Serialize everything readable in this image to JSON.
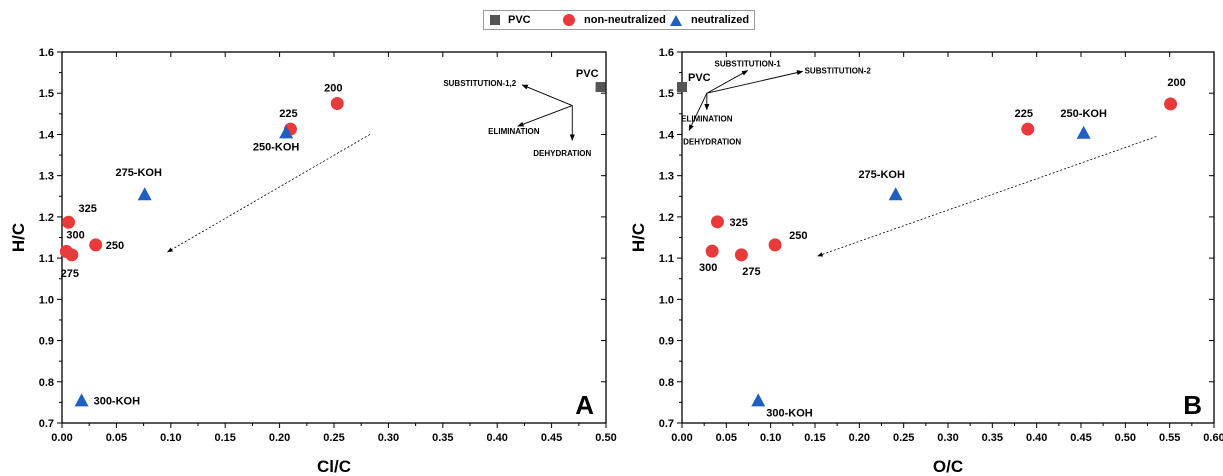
{
  "legend": {
    "items": [
      {
        "label": "PVC",
        "marker": "square",
        "color": "#555555"
      },
      {
        "label": "non-neutralized",
        "marker": "circle",
        "color": "#e83a3a"
      },
      {
        "label": "neutralized",
        "marker": "triangle",
        "color": "#1f5fbf"
      }
    ]
  },
  "chart_data": [
    {
      "type": "scatter",
      "panel_label": "A",
      "xlabel": "Cl/C",
      "ylabel": "H/C",
      "xlim": [
        0,
        0.5
      ],
      "ylim": [
        0.7,
        1.6
      ],
      "xticks": [
        "0.00",
        "0.05",
        "0.10",
        "0.15",
        "0.20",
        "0.25",
        "0.30",
        "0.35",
        "0.40",
        "0.45",
        "0.50"
      ],
      "yticks": [
        "0.7",
        "0.8",
        "0.9",
        "1.0",
        "1.1",
        "1.2",
        "1.3",
        "1.4",
        "1.5",
        "1.6"
      ],
      "series": [
        {
          "name": "PVC",
          "marker": "square",
          "color": "#555555",
          "points": [
            {
              "x": 0.495,
              "y": 1.515,
              "label": "PVC"
            }
          ]
        },
        {
          "name": "non-neutralized",
          "marker": "circle",
          "color": "#e83a3a",
          "points": [
            {
              "x": 0.253,
              "y": 1.475,
              "label": "200"
            },
            {
              "x": 0.21,
              "y": 1.413,
              "label": "225"
            },
            {
              "x": 0.031,
              "y": 1.132,
              "label": "250"
            },
            {
              "x": 0.009,
              "y": 1.108,
              "label": "275"
            },
            {
              "x": 0.004,
              "y": 1.116,
              "label": "300"
            },
            {
              "x": 0.006,
              "y": 1.187,
              "label": "325"
            }
          ]
        },
        {
          "name": "neutralized",
          "marker": "triangle",
          "color": "#1f5fbf",
          "points": [
            {
              "x": 0.206,
              "y": 1.405,
              "label": "250-KOH"
            },
            {
              "x": 0.076,
              "y": 1.255,
              "label": "275-KOH"
            },
            {
              "x": 0.018,
              "y": 0.755,
              "label": "300-KOH"
            }
          ]
        }
      ],
      "trend_arrow": {
        "from": [
          0.283,
          1.4
        ],
        "to": [
          0.097,
          1.115
        ]
      },
      "mechanism_arrows": {
        "origin": [
          0.469,
          1.47
        ],
        "arrows": [
          {
            "to": [
              0.423,
              1.52
            ],
            "label": "SUBSTITUTION-1,2"
          },
          {
            "to": [
              0.419,
              1.42
            ],
            "label": "ELIMINATION"
          },
          {
            "to": [
              0.469,
              1.386
            ],
            "label": "DEHYDRATION"
          }
        ]
      }
    },
    {
      "type": "scatter",
      "panel_label": "B",
      "xlabel": "O/C",
      "ylabel": "H/C",
      "xlim": [
        0,
        0.6
      ],
      "ylim": [
        0.7,
        1.6
      ],
      "xticks": [
        "0.00",
        "0.05",
        "0.10",
        "0.15",
        "0.20",
        "0.25",
        "0.30",
        "0.35",
        "0.40",
        "0.45",
        "0.50",
        "0.55",
        "0.60"
      ],
      "yticks": [
        "0.7",
        "0.8",
        "0.9",
        "1.0",
        "1.1",
        "1.2",
        "1.3",
        "1.4",
        "1.5",
        "1.6"
      ],
      "series": [
        {
          "name": "PVC",
          "marker": "square",
          "color": "#555555",
          "points": [
            {
              "x": 0.0,
              "y": 1.515,
              "label": "PVC"
            }
          ]
        },
        {
          "name": "non-neutralized",
          "marker": "circle",
          "color": "#e83a3a",
          "points": [
            {
              "x": 0.551,
              "y": 1.474,
              "label": "200"
            },
            {
              "x": 0.39,
              "y": 1.413,
              "label": "225"
            },
            {
              "x": 0.105,
              "y": 1.132,
              "label": "250"
            },
            {
              "x": 0.067,
              "y": 1.108,
              "label": "275"
            },
            {
              "x": 0.034,
              "y": 1.117,
              "label": "300"
            },
            {
              "x": 0.04,
              "y": 1.188,
              "label": "325"
            }
          ]
        },
        {
          "name": "neutralized",
          "marker": "triangle",
          "color": "#1f5fbf",
          "points": [
            {
              "x": 0.453,
              "y": 1.404,
              "label": "250-KOH"
            },
            {
              "x": 0.241,
              "y": 1.255,
              "label": "275-KOH"
            },
            {
              "x": 0.086,
              "y": 0.755,
              "label": "300-KOH"
            }
          ]
        }
      ],
      "trend_arrow": {
        "from": [
          0.535,
          1.395
        ],
        "to": [
          0.153,
          1.105
        ]
      },
      "mechanism_arrows": {
        "origin": [
          0.028,
          1.5
        ],
        "arrows": [
          {
            "to": [
              0.074,
              1.555
            ],
            "label": "SUBSTITUTION-1"
          },
          {
            "to": [
              0.136,
              1.553
            ],
            "label": "SUBSTITUTION-2"
          },
          {
            "to": [
              0.028,
              1.46
            ],
            "label": "ELIMINATION"
          },
          {
            "to": [
              0.008,
              1.41
            ],
            "label": "DEHYDRATION"
          }
        ]
      }
    }
  ]
}
